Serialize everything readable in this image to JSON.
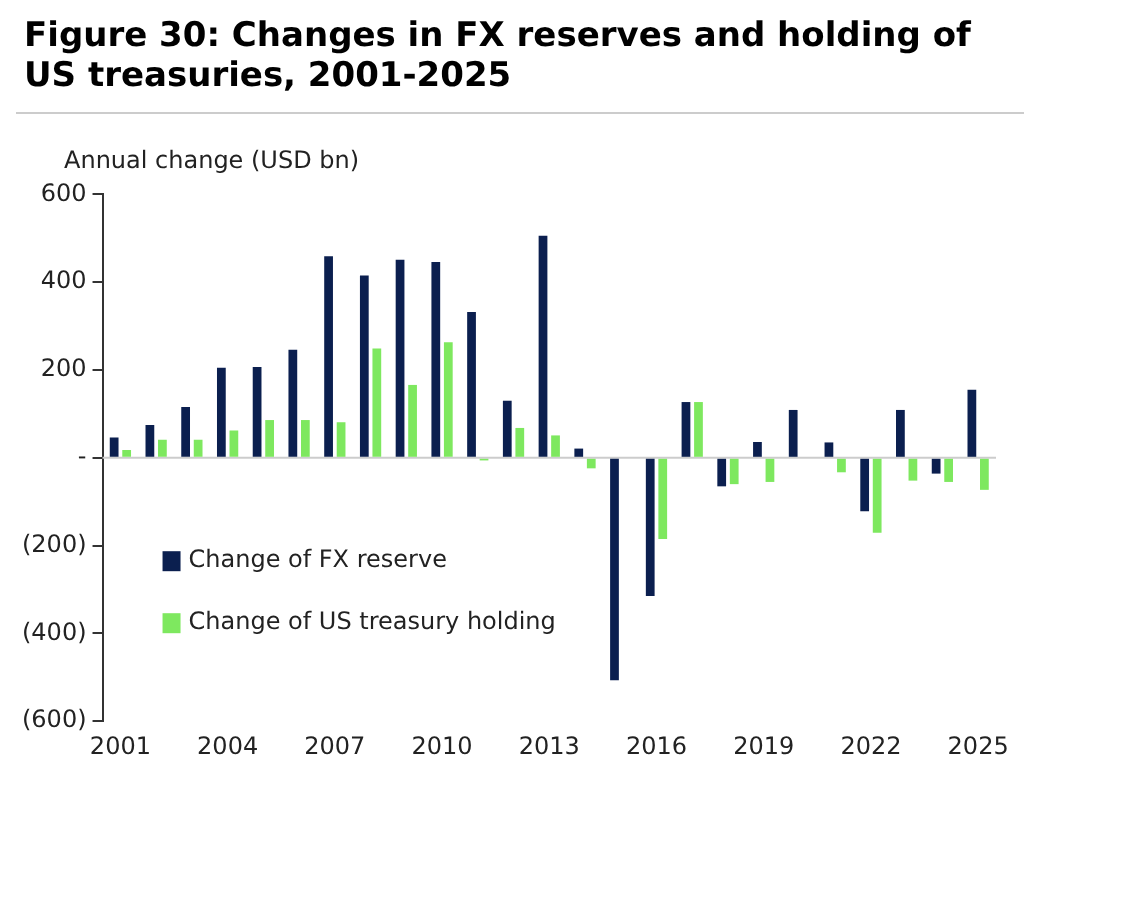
{
  "chart_data": {
    "type": "bar",
    "title": "Figure 30: Changes in FX reserves and holding of US treasuries, 2001-2025",
    "ylabel": "Annual change (USD bn)",
    "categories": [
      "2001",
      null,
      null,
      "2004",
      null,
      null,
      "2007",
      null,
      null,
      "2010",
      null,
      null,
      "2013",
      null,
      null,
      "2016",
      null,
      null,
      "2019",
      null,
      null,
      "2022",
      null,
      null,
      "2025"
    ],
    "series": [
      {
        "name": "Change of FX reserve",
        "color": "#0b1f4f",
        "values": [
          46,
          75,
          116,
          205,
          207,
          246,
          459,
          415,
          451,
          446,
          332,
          130,
          506,
          21,
          -507,
          -315,
          127,
          -65,
          36,
          109,
          35,
          -122,
          109,
          -36,
          155
        ]
      },
      {
        "name": "Change of US treasury holding",
        "color": "#7ee85f",
        "values": [
          18,
          41,
          41,
          62,
          86,
          86,
          81,
          249,
          166,
          263,
          -6,
          68,
          51,
          -24,
          0,
          -185,
          127,
          -60,
          -55,
          0,
          -33,
          -171,
          -52,
          -55,
          -73
        ]
      }
    ],
    "ylim": [
      -600,
      600
    ],
    "yticks": [
      {
        "value": -600,
        "label": "(600)"
      },
      {
        "value": -400,
        "label": "(400)"
      },
      {
        "value": -200,
        "label": "(200)"
      },
      {
        "value": 0,
        "label": "-"
      },
      200,
      400,
      600
    ],
    "ref_lines": [
      {
        "axis": "y",
        "value": 0,
        "color": "#cccccc"
      }
    ],
    "legend": "bottom left"
  }
}
